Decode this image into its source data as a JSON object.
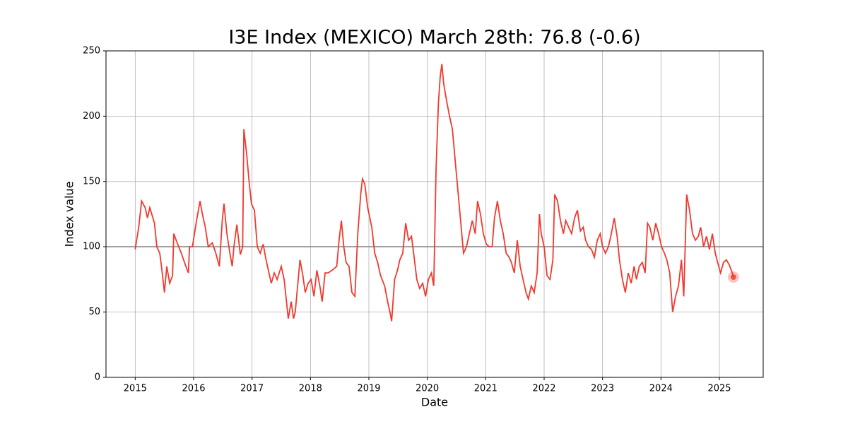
{
  "chart_data": {
    "type": "line",
    "title": "I3E Index (MEXICO) March 28th: 76.8 (-0.6)",
    "x_label": "Date",
    "y_label": "Index value",
    "xlim": [
      2014.5,
      2025.75
    ],
    "ylim": [
      0,
      250
    ],
    "xticks": [
      2015,
      2016,
      2017,
      2018,
      2019,
      2020,
      2021,
      2022,
      2023,
      2024,
      2025
    ],
    "yticks": [
      0,
      50,
      100,
      150,
      200,
      250
    ],
    "grid": true,
    "reference_line": {
      "value": 100,
      "color": "#808080"
    },
    "series": [
      {
        "name": "I3E Index",
        "color": "#f03a2e",
        "x": [
          2015.0,
          2015.06,
          2015.11,
          2015.17,
          2015.21,
          2015.25,
          2015.33,
          2015.37,
          2015.42,
          2015.45,
          2015.5,
          2015.54,
          2015.59,
          2015.64,
          2015.66,
          2015.71,
          2015.79,
          2015.86,
          2015.91,
          2015.93,
          2015.98,
          2016.05,
          2016.11,
          2016.15,
          2016.2,
          2016.25,
          2016.32,
          2016.38,
          2016.44,
          2016.49,
          2016.52,
          2016.57,
          2016.62,
          2016.66,
          2016.69,
          2016.74,
          2016.8,
          2016.84,
          2016.86,
          2016.91,
          2016.95,
          2016.99,
          2017.04,
          2017.09,
          2017.14,
          2017.19,
          2017.24,
          2017.29,
          2017.33,
          2017.38,
          2017.43,
          2017.5,
          2017.55,
          2017.59,
          2017.62,
          2017.67,
          2017.71,
          2017.74,
          2017.79,
          2017.82,
          2017.87,
          2017.91,
          2017.96,
          2018.01,
          2018.06,
          2018.11,
          2018.16,
          2018.2,
          2018.25,
          2018.3,
          2018.37,
          2018.45,
          2018.49,
          2018.53,
          2018.57,
          2018.61,
          2018.66,
          2018.71,
          2018.76,
          2018.81,
          2018.86,
          2018.89,
          2018.93,
          2018.98,
          2019.05,
          2019.1,
          2019.15,
          2019.2,
          2019.27,
          2019.32,
          2019.36,
          2019.39,
          2019.44,
          2019.49,
          2019.53,
          2019.58,
          2019.63,
          2019.68,
          2019.73,
          2019.78,
          2019.82,
          2019.87,
          2019.92,
          2019.97,
          2020.02,
          2020.07,
          2020.11,
          2020.15,
          2020.19,
          2020.22,
          2020.25,
          2020.28,
          2020.33,
          2020.38,
          2020.43,
          2020.48,
          2020.53,
          2020.57,
          2020.62,
          2020.67,
          2020.72,
          2020.77,
          2020.82,
          2020.86,
          2020.91,
          2020.96,
          2021.01,
          2021.06,
          2021.11,
          2021.15,
          2021.2,
          2021.25,
          2021.3,
          2021.35,
          2021.4,
          2021.44,
          2021.49,
          2021.54,
          2021.59,
          2021.64,
          2021.69,
          2021.73,
          2021.78,
          2021.83,
          2021.88,
          2021.92,
          2021.95,
          2022.0,
          2022.05,
          2022.1,
          2022.15,
          2022.18,
          2022.23,
          2022.28,
          2022.33,
          2022.37,
          2022.42,
          2022.47,
          2022.52,
          2022.57,
          2022.62,
          2022.67,
          2022.71,
          2022.76,
          2022.81,
          2022.86,
          2022.91,
          2022.96,
          2023.0,
          2023.05,
          2023.1,
          2023.15,
          2023.2,
          2023.25,
          2023.29,
          2023.34,
          2023.39,
          2023.44,
          2023.49,
          2023.54,
          2023.58,
          2023.63,
          2023.68,
          2023.73,
          2023.77,
          2023.81,
          2023.86,
          2023.91,
          2023.96,
          2024.01,
          2024.06,
          2024.1,
          2024.15,
          2024.2,
          2024.25,
          2024.3,
          2024.35,
          2024.39,
          2024.44,
          2024.49,
          2024.54,
          2024.59,
          2024.64,
          2024.68,
          2024.73,
          2024.78,
          2024.83,
          2024.88,
          2024.93,
          2024.97,
          2025.02,
          2025.07,
          2025.12,
          2025.17,
          2025.22,
          2025.24
        ],
        "values": [
          98,
          115,
          135,
          130,
          122,
          130,
          118,
          100,
          95,
          85,
          65,
          85,
          72,
          78,
          110,
          104,
          95,
          86,
          80,
          100,
          100,
          120,
          135,
          125,
          115,
          100,
          103,
          95,
          85,
          120,
          133,
          110,
          95,
          85,
          100,
          117,
          94,
          100,
          190,
          170,
          150,
          133,
          128,
          100,
          95,
          102,
          90,
          80,
          72,
          80,
          75,
          85,
          75,
          58,
          45,
          58,
          45,
          50,
          75,
          90,
          78,
          65,
          72,
          75,
          62,
          82,
          70,
          58,
          80,
          80,
          82,
          85,
          105,
          120,
          100,
          88,
          85,
          65,
          62,
          110,
          140,
          152,
          148,
          130,
          115,
          95,
          88,
          78,
          70,
          58,
          50,
          43,
          75,
          82,
          90,
          95,
          118,
          105,
          108,
          90,
          75,
          68,
          72,
          62,
          75,
          80,
          70,
          160,
          210,
          230,
          240,
          225,
          212,
          200,
          190,
          165,
          140,
          120,
          95,
          100,
          110,
          120,
          110,
          135,
          125,
          110,
          102,
          100,
          100,
          122,
          135,
          120,
          110,
          95,
          92,
          88,
          80,
          105,
          85,
          75,
          65,
          60,
          70,
          65,
          80,
          125,
          110,
          100,
          78,
          75,
          90,
          140,
          135,
          120,
          110,
          120,
          115,
          110,
          122,
          128,
          112,
          115,
          105,
          100,
          98,
          92,
          105,
          110,
          100,
          95,
          100,
          110,
          122,
          108,
          90,
          75,
          65,
          80,
          72,
          85,
          75,
          85,
          88,
          80,
          118,
          115,
          105,
          118,
          110,
          100,
          95,
          90,
          80,
          50,
          62,
          70,
          90,
          62,
          140,
          128,
          110,
          105,
          108,
          115,
          100,
          108,
          98,
          110,
          95,
          88,
          80,
          88,
          90,
          86,
          80,
          76.8
        ]
      }
    ]
  }
}
